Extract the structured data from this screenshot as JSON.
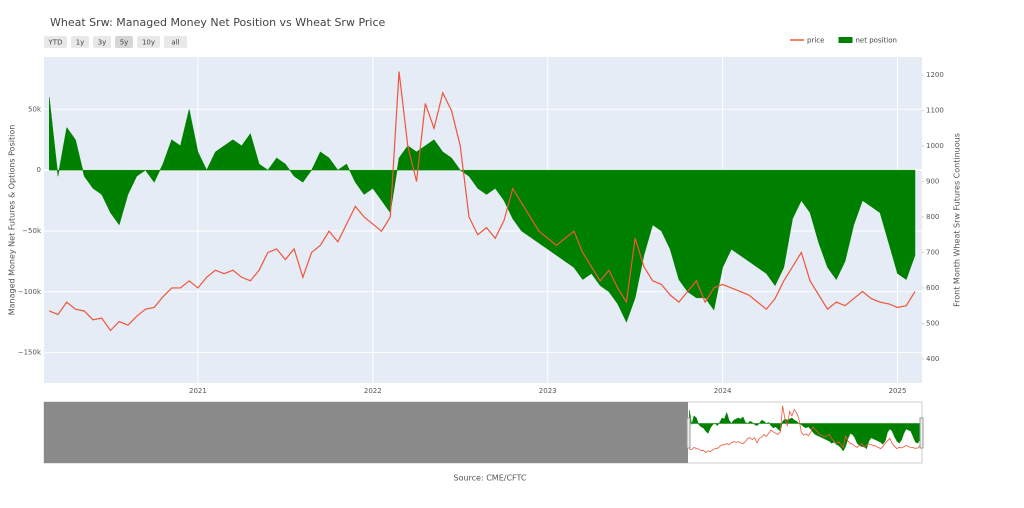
{
  "chart_data": {
    "type": "line",
    "title": "Wheat Srw: Managed Money Net Position vs Wheat Srw Price",
    "buttons": [
      "YTD",
      "1y",
      "3y",
      "5y",
      "10y",
      "all"
    ],
    "y_label": "Managed Money Net Futures & Options Position",
    "y2_label": "Front Month Wheat Srw Futures Continuous",
    "annotation": "Source: CME/CFTC",
    "xlim": [
      2020.12,
      2025.14
    ],
    "xticks": [
      2021,
      2022,
      2023,
      2024,
      2025
    ],
    "ylim": [
      -175000,
      93000
    ],
    "yticks": [
      {
        "value": -150000,
        "label": "−150k"
      },
      {
        "value": -100000,
        "label": "−100k"
      },
      {
        "value": -50000,
        "label": "−50k"
      },
      0,
      {
        "value": 50000,
        "label": "50k"
      }
    ],
    "y2lim": [
      332,
      1251
    ],
    "y2ticks": [
      400,
      500,
      600,
      700,
      800,
      900,
      1000,
      1100,
      1200
    ],
    "grid": true,
    "legend": "top-right",
    "x": [
      2020.15,
      2020.2,
      2020.25,
      2020.3,
      2020.35,
      2020.4,
      2020.45,
      2020.5,
      2020.55,
      2020.6,
      2020.65,
      2020.7,
      2020.75,
      2020.8,
      2020.85,
      2020.9,
      2020.95,
      2021.0,
      2021.05,
      2021.1,
      2021.15,
      2021.2,
      2021.25,
      2021.3,
      2021.35,
      2021.4,
      2021.45,
      2021.5,
      2021.55,
      2021.6,
      2021.65,
      2021.7,
      2021.75,
      2021.8,
      2021.85,
      2021.9,
      2021.95,
      2022.0,
      2022.05,
      2022.1,
      2022.15,
      2022.2,
      2022.25,
      2022.3,
      2022.35,
      2022.4,
      2022.45,
      2022.5,
      2022.55,
      2022.6,
      2022.65,
      2022.7,
      2022.75,
      2022.8,
      2022.85,
      2022.9,
      2022.95,
      2023.0,
      2023.05,
      2023.1,
      2023.15,
      2023.2,
      2023.25,
      2023.3,
      2023.35,
      2023.4,
      2023.45,
      2023.5,
      2023.55,
      2023.6,
      2023.65,
      2023.7,
      2023.75,
      2023.8,
      2023.85,
      2023.9,
      2023.95,
      2024.0,
      2024.05,
      2024.1,
      2024.15,
      2024.2,
      2024.25,
      2024.3,
      2024.35,
      2024.4,
      2024.45,
      2024.5,
      2024.55,
      2024.6,
      2024.65,
      2024.7,
      2024.75,
      2024.8,
      2024.85,
      2024.9,
      2024.95,
      2025.0,
      2025.05,
      2025.1
    ],
    "series": [
      {
        "name": "price",
        "color": "#ef553b",
        "axis": "y2",
        "fill": false,
        "values": [
          535,
          525,
          560,
          540,
          535,
          510,
          515,
          480,
          505,
          495,
          520,
          540,
          545,
          575,
          600,
          600,
          620,
          600,
          630,
          650,
          640,
          650,
          630,
          620,
          650,
          700,
          710,
          680,
          710,
          630,
          700,
          720,
          760,
          730,
          780,
          830,
          800,
          780,
          760,
          800,
          1210,
          1000,
          900,
          1120,
          1050,
          1150,
          1100,
          1000,
          800,
          750,
          770,
          740,
          790,
          880,
          840,
          800,
          760,
          740,
          720,
          740,
          760,
          700,
          660,
          620,
          650,
          600,
          560,
          740,
          660,
          620,
          610,
          580,
          560,
          590,
          620,
          560,
          600,
          610,
          600,
          590,
          580,
          560,
          540,
          570,
          620,
          660,
          700,
          620,
          580,
          540,
          560,
          550,
          570,
          590,
          570,
          560,
          555,
          545,
          550,
          590
        ]
      },
      {
        "name": "net position",
        "color": "#008000",
        "axis": "y",
        "fill": true,
        "values": [
          60000,
          -5000,
          35000,
          25000,
          -5000,
          -15000,
          -20000,
          -35000,
          -45000,
          -20000,
          -5000,
          0,
          -10000,
          5000,
          25000,
          20000,
          50000,
          15000,
          0,
          15000,
          20000,
          25000,
          20000,
          30000,
          5000,
          0,
          10000,
          5000,
          -5000,
          -10000,
          0,
          15000,
          10000,
          0,
          5000,
          -10000,
          -20000,
          -15000,
          -25000,
          -35000,
          10000,
          20000,
          15000,
          20000,
          25000,
          15000,
          10000,
          0,
          -5000,
          -15000,
          -20000,
          -15000,
          -25000,
          -40000,
          -50000,
          -55000,
          -60000,
          -65000,
          -70000,
          -75000,
          -80000,
          -90000,
          -85000,
          -95000,
          -100000,
          -110000,
          -125000,
          -105000,
          -70000,
          -45000,
          -50000,
          -65000,
          -90000,
          -100000,
          -105000,
          -105000,
          -115000,
          -80000,
          -65000,
          -70000,
          -75000,
          -80000,
          -85000,
          -95000,
          -80000,
          -40000,
          -25000,
          -35000,
          -60000,
          -80000,
          -90000,
          -75000,
          -45000,
          -25000,
          -30000,
          -35000,
          -60000,
          -85000,
          -90000,
          -70000
        ]
      }
    ]
  }
}
